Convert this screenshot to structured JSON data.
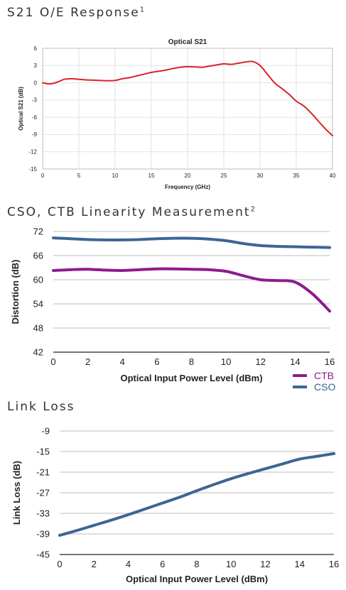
{
  "sections": [
    {
      "title": "S21 O/E Response",
      "sup": "1"
    },
    {
      "title": "CSO, CTB Linearity Measurement",
      "sup": "2"
    },
    {
      "title": "Link Loss",
      "sup": ""
    }
  ],
  "colors": {
    "s21": "#d8232a",
    "ctb": "#8e1b8e",
    "cso": "#3d6595",
    "link": "#3d6595",
    "grid": "#cfcfcf"
  },
  "chart_data": [
    {
      "type": "line",
      "title": "Optical S21",
      "xlabel": "Frequency  (GHz)",
      "ylabel": "Optical S21 (dB)",
      "xlim": [
        0,
        40
      ],
      "ylim": [
        -15,
        6
      ],
      "xticks": [
        0,
        5,
        10,
        15,
        20,
        25,
        30,
        35,
        40
      ],
      "yticks": [
        6,
        3,
        0,
        -3,
        -6,
        -9,
        -12,
        -15
      ],
      "grid": true,
      "series": [
        {
          "color": "#d8232a",
          "x": [
            0,
            1,
            2,
            3,
            4,
            5,
            6,
            7,
            8,
            9,
            10,
            11,
            12,
            13,
            14,
            15,
            16,
            17,
            18,
            19,
            20,
            21,
            22,
            23,
            24,
            25,
            26,
            27,
            28,
            29,
            30,
            31,
            32,
            33,
            34,
            35,
            36,
            37,
            38,
            39,
            40
          ],
          "y": [
            0,
            -0.2,
            0.1,
            0.6,
            0.7,
            0.6,
            0.5,
            0.45,
            0.4,
            0.35,
            0.4,
            0.7,
            0.9,
            1.2,
            1.5,
            1.8,
            2.0,
            2.2,
            2.5,
            2.7,
            2.8,
            2.75,
            2.7,
            2.9,
            3.1,
            3.3,
            3.2,
            3.4,
            3.6,
            3.7,
            3.0,
            1.5,
            0,
            -1.0,
            -2.0,
            -3.2,
            -4.0,
            -5.2,
            -6.6,
            -8.0,
            -9.2
          ]
        }
      ]
    },
    {
      "type": "line",
      "title": "",
      "xlabel": "Optical Input Power Level (dBm)",
      "ylabel": "Distortion (dB)",
      "xlim": [
        0,
        16
      ],
      "ylim": [
        42,
        72
      ],
      "xticks": [
        0,
        2,
        4,
        6,
        8,
        10,
        12,
        14,
        16
      ],
      "yticks": [
        72,
        66,
        60,
        54,
        48,
        42
      ],
      "grid": true,
      "legend": "bottom-right",
      "series": [
        {
          "name": "CTB",
          "color": "#8e1b8e",
          "x": [
            0,
            1,
            2,
            3,
            4,
            5,
            6,
            7,
            8,
            9,
            10,
            11,
            12,
            13,
            14,
            15,
            16
          ],
          "y": [
            62.3,
            62.5,
            62.6,
            62.4,
            62.3,
            62.5,
            62.7,
            62.7,
            62.6,
            62.5,
            62.1,
            61.0,
            60.0,
            59.8,
            59.4,
            56.5,
            52.2
          ]
        },
        {
          "name": "CSO",
          "color": "#3d6595",
          "x": [
            0,
            1,
            2,
            3,
            4,
            5,
            6,
            7,
            8,
            9,
            10,
            11,
            12,
            13,
            14,
            15,
            16
          ],
          "y": [
            70.4,
            70.2,
            70.0,
            69.9,
            69.9,
            70.0,
            70.2,
            70.3,
            70.3,
            70.1,
            69.7,
            69.0,
            68.5,
            68.3,
            68.2,
            68.1,
            68.0
          ]
        }
      ]
    },
    {
      "type": "line",
      "title": "",
      "xlabel": "Optical Input Power Level (dBm)",
      "ylabel": "Link Loss (dB)",
      "xlim": [
        0,
        16
      ],
      "ylim": [
        -45,
        -9
      ],
      "xticks": [
        0,
        2,
        4,
        6,
        8,
        10,
        12,
        14,
        16
      ],
      "yticks": [
        -9,
        -15,
        -21,
        -27,
        -33,
        -39,
        -45
      ],
      "grid": true,
      "series": [
        {
          "color": "#3d6595",
          "x": [
            0,
            1,
            2,
            3,
            4,
            5,
            6,
            7,
            8,
            9,
            10,
            11,
            12,
            13,
            14,
            15,
            16
          ],
          "y": [
            -39.4,
            -38.0,
            -36.5,
            -35.0,
            -33.4,
            -31.7,
            -30.0,
            -28.3,
            -26.4,
            -24.6,
            -22.9,
            -21.4,
            -20.0,
            -18.6,
            -17.2,
            -16.4,
            -15.6
          ]
        }
      ]
    }
  ]
}
